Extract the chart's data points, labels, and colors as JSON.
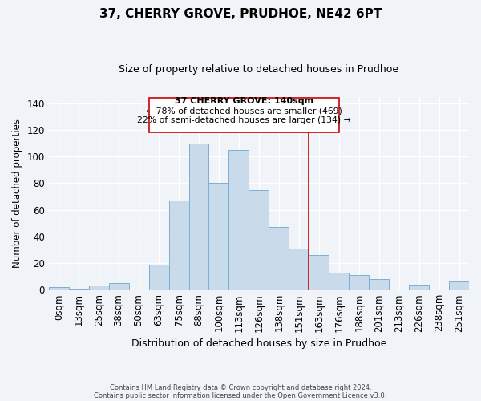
{
  "title": "37, CHERRY GROVE, PRUDHOE, NE42 6PT",
  "subtitle": "Size of property relative to detached houses in Prudhoe",
  "xlabel": "Distribution of detached houses by size in Prudhoe",
  "ylabel": "Number of detached properties",
  "bar_labels": [
    "0sqm",
    "13sqm",
    "25sqm",
    "38sqm",
    "50sqm",
    "63sqm",
    "75sqm",
    "88sqm",
    "100sqm",
    "113sqm",
    "126sqm",
    "138sqm",
    "151sqm",
    "163sqm",
    "176sqm",
    "188sqm",
    "201sqm",
    "213sqm",
    "226sqm",
    "238sqm",
    "251sqm"
  ],
  "bar_values": [
    2,
    1,
    3,
    5,
    0,
    19,
    67,
    110,
    80,
    105,
    75,
    47,
    31,
    26,
    13,
    11,
    8,
    0,
    4,
    0,
    7
  ],
  "bar_color": "#c9daea",
  "bar_edge_color": "#7aafd4",
  "annotation_title": "37 CHERRY GROVE: 140sqm",
  "annotation_line1": "← 78% of detached houses are smaller (469)",
  "annotation_line2": "22% of semi-detached houses are larger (134) →",
  "vline_color": "#cc0000",
  "vline_index": 12,
  "ylim": [
    0,
    145
  ],
  "yticks": [
    0,
    20,
    40,
    60,
    80,
    100,
    120,
    140
  ],
  "footer1": "Contains HM Land Registry data © Crown copyright and database right 2024.",
  "footer2": "Contains public sector information licensed under the Open Government Licence v3.0.",
  "bg_color": "#f0f4f8"
}
